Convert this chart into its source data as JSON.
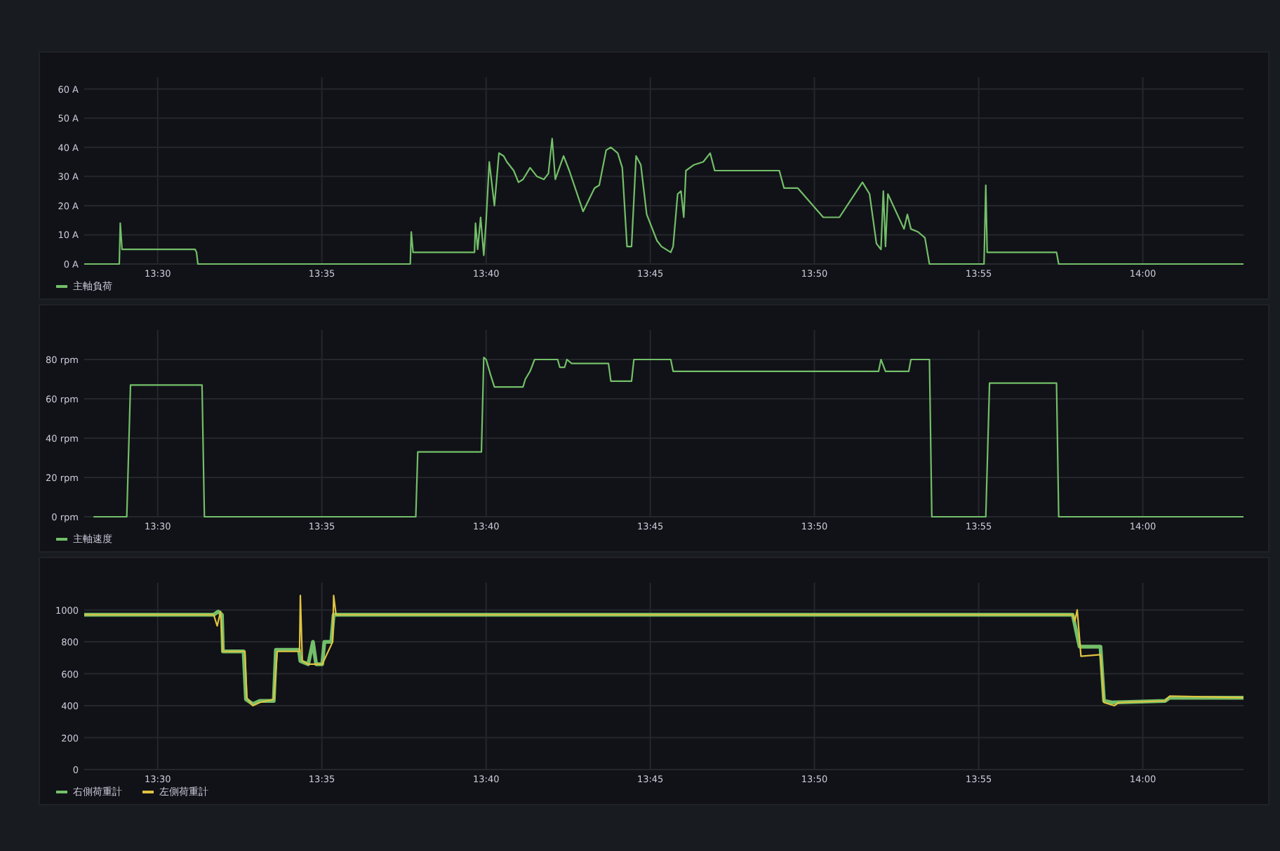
{
  "chart_data": [
    {
      "type": "line",
      "grid": true,
      "legend": "bottom left",
      "xlim": [
        13.4627,
        14.0511
      ],
      "ylim": [
        0,
        64
      ],
      "xticks": [
        {
          "value": 13.5,
          "label": "13:30"
        },
        {
          "value": 13.5833,
          "label": "13:35"
        },
        {
          "value": 13.6667,
          "label": "13:40"
        },
        {
          "value": 13.75,
          "label": "13:45"
        },
        {
          "value": 13.8333,
          "label": "13:50"
        },
        {
          "value": 13.9167,
          "label": "13:55"
        },
        {
          "value": 14,
          "label": "14:00"
        }
      ],
      "yticks": [
        {
          "value": 0,
          "label": "0 A"
        },
        {
          "value": 10,
          "label": "10 A"
        },
        {
          "value": 20,
          "label": "20 A"
        },
        {
          "value": 30,
          "label": "30 A"
        },
        {
          "value": 40,
          "label": "40 A"
        },
        {
          "value": 50,
          "label": "50 A"
        },
        {
          "value": 60,
          "label": "60 A"
        }
      ],
      "series": [
        {
          "name": "主軸負荷",
          "color": "#73bf69",
          "x": [
            13.4627,
            13.4805,
            13.481,
            13.4819,
            13.519,
            13.5197,
            13.5204,
            13.6282,
            13.6287,
            13.6296,
            13.6608,
            13.6613,
            13.6624,
            13.6639,
            13.6655,
            13.6667,
            13.6683,
            13.6709,
            13.6732,
            13.6756,
            13.6772,
            13.6807,
            13.6831,
            13.6854,
            13.689,
            13.6925,
            13.696,
            13.6983,
            13.7002,
            13.7018,
            13.706,
            13.7089,
            13.7159,
            13.7217,
            13.7241,
            13.7276,
            13.73,
            13.7335,
            13.7358,
            13.7382,
            13.7405,
            13.7428,
            13.7452,
            13.7482,
            13.7534,
            13.7557,
            13.7604,
            13.7616,
            13.7639,
            13.7656,
            13.767,
            13.7681,
            13.7722,
            13.7769,
            13.7804,
            13.7827,
            13.8155,
            13.8179,
            13.8249,
            13.8378,
            13.846,
            13.8577,
            13.8613,
            13.8648,
            13.8671,
            13.8683,
            13.8694,
            13.8706,
            13.8788,
            13.8805,
            13.8823,
            13.8859,
            13.8894,
            13.8917,
            13.9194,
            13.9203,
            13.921,
            13.9562,
            13.9573,
            14.0511
          ],
          "values": [
            0,
            0,
            14,
            5,
            5,
            4,
            0,
            0,
            11,
            4,
            4,
            14,
            5,
            16,
            3,
            15,
            35,
            20,
            38,
            37,
            35,
            32,
            28,
            29,
            33,
            30,
            29,
            31,
            43,
            29,
            37,
            32,
            18,
            26,
            27,
            39,
            40,
            38,
            33,
            6,
            6,
            37,
            34,
            17,
            8,
            6,
            4,
            6,
            24,
            25,
            16,
            32,
            34,
            35,
            38,
            32,
            32,
            26,
            26,
            16,
            16,
            28,
            24,
            7,
            5,
            25,
            6,
            24,
            12,
            17,
            12,
            11,
            9,
            0,
            0,
            27,
            4,
            4,
            0,
            0
          ]
        }
      ]
    },
    {
      "type": "line",
      "grid": true,
      "legend": "bottom left",
      "xlim": [
        13.4627,
        14.0511
      ],
      "ylim": [
        0,
        95
      ],
      "xticks": [
        {
          "value": 13.5,
          "label": "13:30"
        },
        {
          "value": 13.5833,
          "label": "13:35"
        },
        {
          "value": 13.6667,
          "label": "13:40"
        },
        {
          "value": 13.75,
          "label": "13:45"
        },
        {
          "value": 13.8333,
          "label": "13:50"
        },
        {
          "value": 13.9167,
          "label": "13:55"
        },
        {
          "value": 14,
          "label": "14:00"
        }
      ],
      "yticks": [
        {
          "value": 0,
          "label": "0 rpm"
        },
        {
          "value": 20,
          "label": "20 rpm"
        },
        {
          "value": 40,
          "label": "40 rpm"
        },
        {
          "value": 60,
          "label": "60 rpm"
        },
        {
          "value": 80,
          "label": "80 rpm"
        }
      ],
      "series": [
        {
          "name": "主軸速度",
          "color": "#73bf69",
          "x": [
            13.4674,
            13.4843,
            13.4862,
            13.5225,
            13.5237,
            13.631,
            13.632,
            13.6643,
            13.6655,
            13.6667,
            13.669,
            13.6709,
            13.6854,
            13.6866,
            13.689,
            13.6913,
            13.703,
            13.7041,
            13.7065,
            13.7077,
            13.7101,
            13.7288,
            13.73,
            13.7405,
            13.7417,
            13.7604,
            13.7616,
            13.8659,
            13.8671,
            13.8694,
            13.8812,
            13.8823,
            13.8917,
            13.8929,
            13.9203,
            13.9222,
            13.9562,
            13.9573,
            14.0511
          ],
          "values": [
            0,
            0,
            67,
            67,
            0,
            0,
            33,
            33,
            81,
            80,
            72,
            66,
            66,
            70,
            74,
            80,
            80,
            76,
            76,
            80,
            78,
            78,
            69,
            69,
            80,
            80,
            74,
            74,
            80,
            74,
            74,
            80,
            80,
            0,
            0,
            68,
            68,
            0,
            0
          ]
        }
      ]
    },
    {
      "type": "line",
      "grid": true,
      "legend": "bottom left",
      "xlim": [
        13.4627,
        14.0511
      ],
      "ylim": [
        0,
        1170
      ],
      "xticks": [
        {
          "value": 13.5,
          "label": "13:30"
        },
        {
          "value": 13.5833,
          "label": "13:35"
        },
        {
          "value": 13.6667,
          "label": "13:40"
        },
        {
          "value": 13.75,
          "label": "13:45"
        },
        {
          "value": 13.8333,
          "label": "13:50"
        },
        {
          "value": 13.9167,
          "label": "13:55"
        },
        {
          "value": 14,
          "label": "14:00"
        }
      ],
      "yticks": [
        0,
        200,
        400,
        600,
        800,
        1000
      ],
      "series": [
        {
          "name": "右側荷重計",
          "color": "#73bf69",
          "x": [
            13.4627,
            13.5284,
            13.5307,
            13.5326,
            13.5331,
            13.5436,
            13.5448,
            13.5483,
            13.5518,
            13.5589,
            13.56,
            13.5717,
            13.5724,
            13.5764,
            13.5788,
            13.5804,
            13.5835,
            13.5846,
            13.5881,
            13.5893,
            13.9644,
            13.9679,
            13.9785,
            13.9803,
            13.9843,
            14.0113,
            14.0136,
            14.0511
          ],
          "values": [
            970,
            970,
            990,
            970,
            740,
            740,
            440,
            410,
            430,
            430,
            750,
            750,
            680,
            660,
            800,
            660,
            660,
            800,
            800,
            970,
            970,
            770,
            770,
            430,
            420,
            430,
            450,
            450
          ]
        },
        {
          "name": "左側荷重計",
          "color": "#e0c341",
          "x": [
            13.4627,
            13.5284,
            13.5302,
            13.5319,
            13.5331,
            13.5443,
            13.5452,
            13.5483,
            13.5518,
            13.5589,
            13.5607,
            13.572,
            13.5724,
            13.5734,
            13.5764,
            13.5835,
            13.5888,
            13.5893,
            13.5905,
            13.9644,
            13.9655,
            13.9667,
            13.9686,
            13.9785,
            13.9803,
            13.9855,
            13.9878,
            14.0113,
            14.0136,
            14.0511
          ],
          "values": [
            970,
            970,
            900,
            990,
            740,
            740,
            450,
            400,
            420,
            440,
            740,
            740,
            1090,
            680,
            660,
            660,
            800,
            1090,
            970,
            970,
            930,
            1000,
            710,
            720,
            420,
            400,
            420,
            430,
            460,
            450
          ]
        }
      ]
    }
  ]
}
